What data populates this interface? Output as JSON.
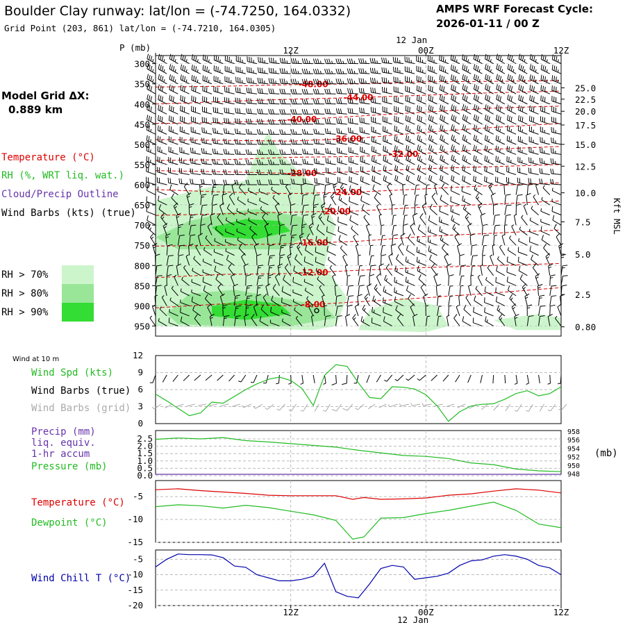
{
  "header": {
    "title": "Boulder Clay runway:  lat/lon = (-74.7250, 164.0332)",
    "grid_point": "Grid Point (203, 861) lat/lon = (-74.7210, 164.0305)",
    "cycle_label": "AMPS WRF Forecast Cycle:",
    "cycle_value": "2026-01-11 / 00  Z"
  },
  "sidebar": {
    "model_grid_label": "Model Grid ΔX:",
    "model_grid_value": "0.889 km",
    "temperature_label": "Temperature (°C)",
    "rh_label": "RH (%, WRT liq. wat.)",
    "cloud_label": "Cloud/Precip Outline",
    "wind_label": "Wind Barbs (kts) (true)",
    "rh_levels": [
      {
        "label": "RH > 70%",
        "color": "#ccf5cc"
      },
      {
        "label": "RH > 80%",
        "color": "#99e699"
      },
      {
        "label": "RH > 90%",
        "color": "#33dd33"
      }
    ]
  },
  "colors": {
    "temperature": "#dd0000",
    "rh": "#22bb22",
    "cloud": "#6633aa",
    "wind_chill": "#0000aa",
    "grid_barb": "#aaaaaa"
  },
  "time_axis": {
    "top_date": "12 Jan",
    "bottom_date": "12 Jan",
    "ticks": [
      "12Z",
      "00Z",
      "12Z"
    ]
  },
  "chart_data": [
    {
      "type": "heatmap",
      "name": "upper-air time-height cross section",
      "ylabel": "P (mb)",
      "right_label": "Kft MSL",
      "p_ticks": [
        300,
        350,
        400,
        450,
        500,
        550,
        600,
        650,
        700,
        750,
        800,
        850,
        900,
        950
      ],
      "kft_ticks": [
        "25.0",
        "22.5",
        "20.0",
        "17.5",
        "15.0",
        "12.5",
        "10.0",
        "7.5",
        "5.0",
        "2.5",
        "0.80"
      ],
      "kft_pressures": [
        360,
        388,
        418,
        452,
        500,
        554,
        620,
        692,
        772,
        872,
        952
      ],
      "ylim": [
        975,
        280
      ],
      "xlim_hours": [
        0,
        36
      ],
      "temperature_contours": [
        {
          "label": "-48.00",
          "points": [
            [
              0,
              358
            ],
            [
              6,
              356
            ],
            [
              12,
              352
            ],
            [
              18,
              350
            ],
            [
              24,
              345
            ],
            [
              30,
              344
            ],
            [
              36,
              342
            ]
          ]
        },
        {
          "label": "-44.00",
          "points": [
            [
              0,
              400
            ],
            [
              6,
              394
            ],
            [
              12,
              388
            ],
            [
              18,
              384
            ],
            [
              24,
              378
            ],
            [
              30,
              372
            ],
            [
              36,
              368
            ]
          ]
        },
        {
          "label": "-40.00",
          "points": [
            [
              0,
              448
            ],
            [
              6,
              446
            ],
            [
              12,
              440
            ],
            [
              18,
              430
            ],
            [
              24,
              420
            ],
            [
              30,
              410
            ],
            [
              36,
              405
            ]
          ]
        },
        {
          "label": "-36.00",
          "points": [
            [
              0,
              488
            ],
            [
              6,
              490
            ],
            [
              12,
              492
            ],
            [
              18,
              485
            ],
            [
              24,
              470
            ],
            [
              30,
              458
            ],
            [
              36,
              448
            ]
          ]
        },
        {
          "label": "-32.00",
          "points": [
            [
              0,
              540
            ],
            [
              6,
              538
            ],
            [
              12,
              532
            ],
            [
              18,
              530
            ],
            [
              24,
              522
            ],
            [
              30,
              512
            ],
            [
              36,
              505
            ]
          ]
        },
        {
          "label": "-28.00",
          "points": [
            [
              0,
              565
            ],
            [
              6,
              568
            ],
            [
              12,
              572
            ],
            [
              18,
              568
            ],
            [
              24,
              560
            ],
            [
              30,
              555
            ],
            [
              36,
              550
            ]
          ]
        },
        {
          "label": "-24.00",
          "points": [
            [
              0,
              612
            ],
            [
              6,
              618
            ],
            [
              12,
              622
            ],
            [
              18,
              618
            ],
            [
              24,
              610
            ],
            [
              30,
              602
            ],
            [
              36,
              595
            ]
          ]
        },
        {
          "label": "-20.00",
          "points": [
            [
              0,
              676
            ],
            [
              6,
              672
            ],
            [
              12,
              668
            ],
            [
              18,
              665
            ],
            [
              24,
              655
            ],
            [
              30,
              648
            ],
            [
              36,
              640
            ]
          ]
        },
        {
          "label": "-16.00",
          "points": [
            [
              0,
              752
            ],
            [
              6,
              750
            ],
            [
              12,
              746
            ],
            [
              18,
              740
            ],
            [
              24,
              728
            ],
            [
              30,
              720
            ],
            [
              36,
              712
            ]
          ]
        },
        {
          "label": "-12.00",
          "points": [
            [
              0,
              830
            ],
            [
              6,
              822
            ],
            [
              12,
              820
            ],
            [
              18,
              812
            ],
            [
              24,
              805
            ],
            [
              30,
              800
            ],
            [
              36,
              795
            ]
          ]
        },
        {
          "label": "-8.00",
          "points": [
            [
              0,
              905
            ],
            [
              6,
              895
            ],
            [
              12,
              900
            ],
            [
              18,
              890
            ],
            [
              24,
              880
            ],
            [
              30,
              868
            ],
            [
              36,
              855
            ]
          ]
        }
      ],
      "rh_regions": [
        {
          "level": 70,
          "points": [
            [
              0,
              950
            ],
            [
              0,
              640
            ],
            [
              4,
              610
            ],
            [
              8,
              590
            ],
            [
              9,
              520
            ],
            [
              10,
              470
            ],
            [
              11,
              520
            ],
            [
              14,
              600
            ],
            [
              16,
              700
            ],
            [
              15,
              800
            ],
            [
              17,
              880
            ],
            [
              16,
              950
            ],
            [
              14,
              960
            ]
          ]
        },
        {
          "level": 70,
          "points": [
            [
              18,
              960
            ],
            [
              19,
              910
            ],
            [
              22,
              880
            ],
            [
              25,
              900
            ],
            [
              26,
              950
            ],
            [
              24,
              965
            ]
          ]
        },
        {
          "level": 70,
          "points": [
            [
              30,
              935
            ],
            [
              34,
              920
            ],
            [
              36,
              930
            ],
            [
              36,
              960
            ],
            [
              32,
              960
            ]
          ]
        },
        {
          "level": 80,
          "points": [
            [
              0,
              730
            ],
            [
              3,
              690
            ],
            [
              6,
              670
            ],
            [
              9,
              660
            ],
            [
              13,
              680
            ],
            [
              14,
              720
            ],
            [
              11,
              760
            ],
            [
              6,
              760
            ],
            [
              2,
              760
            ]
          ]
        },
        {
          "level": 80,
          "points": [
            [
              1,
              920
            ],
            [
              3,
              870
            ],
            [
              7,
              860
            ],
            [
              11,
              880
            ],
            [
              15,
              900
            ],
            [
              16,
              930
            ],
            [
              12,
              950
            ],
            [
              6,
              950
            ],
            [
              2,
              945
            ]
          ]
        },
        {
          "level": 90,
          "points": [
            [
              5,
              705
            ],
            [
              8,
              685
            ],
            [
              11,
              690
            ],
            [
              12,
              715
            ],
            [
              9,
              735
            ],
            [
              6,
              730
            ]
          ]
        },
        {
          "level": 90,
          "points": [
            [
              5,
              900
            ],
            [
              8,
              885
            ],
            [
              11,
              895
            ],
            [
              12,
              920
            ],
            [
              8,
              935
            ],
            [
              5,
              925
            ]
          ]
        }
      ],
      "marker": {
        "hour": 14.3,
        "p": 912
      }
    },
    {
      "type": "line",
      "name": "10 m wind",
      "panel_label": "Wind at 10 m",
      "legend": [
        "Wind Spd (kts)",
        "Wind Barbs (true)",
        "Wind Barbs (grid)"
      ],
      "yticks": [
        0,
        3,
        6,
        9,
        12
      ],
      "ylim": [
        0,
        12
      ],
      "x_hours": [
        0,
        1,
        2,
        3,
        4,
        5,
        6,
        7,
        8,
        9,
        10,
        11,
        12,
        13,
        14,
        15,
        16,
        17,
        18,
        19,
        20,
        21,
        22,
        23,
        24,
        25,
        26,
        27,
        28,
        29,
        30,
        31,
        32,
        33,
        34,
        35,
        36
      ],
      "wind_speed": [
        5.2,
        4.0,
        2.7,
        1.4,
        1.9,
        3.8,
        3.6,
        4.8,
        6.0,
        7.0,
        7.8,
        8.2,
        7.6,
        6.2,
        3.2,
        8.5,
        10.4,
        10.1,
        7.2,
        4.6,
        4.4,
        6.5,
        6.4,
        6.1,
        5.1,
        3.1,
        0.4,
        2.1,
        3.1,
        3.4,
        3.5,
        4.3,
        5.3,
        5.8,
        4.9,
        5.3,
        6.5
      ]
    },
    {
      "type": "line",
      "name": "precip and pressure",
      "legend": [
        "Precip (mm)",
        "liq. equiv.",
        "1-hr accum",
        "Pressure (mb)"
      ],
      "left_ticks": [
        "2.5",
        "2.0",
        "1.5",
        "1.0",
        "0.5",
        "0.0"
      ],
      "right_ticks": [
        "958",
        "956",
        "954",
        "952",
        "950",
        "948"
      ],
      "right_unit": "(mb)",
      "pressure_ylim": [
        948,
        958
      ],
      "x_hours": [
        0,
        2,
        4,
        6,
        8,
        10,
        12,
        14,
        16,
        18,
        20,
        22,
        24,
        26,
        28,
        30,
        32,
        34,
        36
      ],
      "pressure": [
        956.0,
        956.3,
        956.1,
        956.4,
        955.7,
        955.4,
        955.0,
        954.6,
        954.2,
        953.5,
        952.9,
        952.3,
        952.1,
        951.6,
        950.6,
        950.2,
        949.2,
        948.8,
        948.6
      ],
      "precip": [
        0,
        0,
        0,
        0,
        0,
        0,
        0,
        0,
        0,
        0,
        0,
        0,
        0,
        0,
        0,
        0,
        0,
        0,
        0
      ]
    },
    {
      "type": "line",
      "name": "temperature and dewpoint",
      "legend": [
        "Temperature (°C)",
        "Dewpoint (°C)"
      ],
      "yticks": [
        -15,
        -10,
        -5
      ],
      "ylim": [
        -15,
        -1.5
      ],
      "x_hours": [
        0,
        2,
        4,
        6,
        8,
        10,
        12,
        14,
        16,
        17.5,
        18.5,
        20,
        22,
        24,
        26,
        28,
        30,
        32,
        34,
        36
      ],
      "temperature": [
        -3.5,
        -3.3,
        -3.7,
        -4.0,
        -4.3,
        -4.7,
        -4.8,
        -4.8,
        -4.8,
        -5.6,
        -5.2,
        -5.6,
        -5.5,
        -5.3,
        -4.7,
        -4.4,
        -3.8,
        -3.3,
        -3.6,
        -4.2
      ],
      "dewpoint": [
        -7.2,
        -6.8,
        -7.0,
        -7.5,
        -6.9,
        -7.4,
        -8.2,
        -9.0,
        -10.2,
        -14.3,
        -13.8,
        -9.7,
        -9.6,
        -8.7,
        -8.0,
        -7.1,
        -6.2,
        -8.0,
        -11.0,
        -11.8
      ]
    },
    {
      "type": "line",
      "name": "wind chill",
      "legend": [
        "Wind Chill T (°C)"
      ],
      "yticks": [
        -20,
        -15,
        -10,
        -5
      ],
      "ylim": [
        -20,
        -2
      ],
      "x_hours": [
        0,
        1,
        2,
        3,
        4,
        5,
        6,
        7,
        8,
        9,
        10,
        11,
        12,
        13,
        14,
        15,
        16,
        17,
        18,
        19,
        20,
        21,
        22,
        23,
        24,
        25,
        26,
        27,
        28,
        29,
        30,
        31,
        32,
        33,
        34,
        35,
        36
      ],
      "wind_chill": [
        -7.5,
        -5.0,
        -3.3,
        -3.5,
        -3.5,
        -3.6,
        -4.5,
        -7.2,
        -7.6,
        -10.0,
        -11.0,
        -12.0,
        -12.0,
        -11.5,
        -10.5,
        -6.3,
        -15.5,
        -17.0,
        -17.5,
        -13.0,
        -8.0,
        -7.0,
        -7.5,
        -11.5,
        -11.0,
        -10.5,
        -9.5,
        -7.0,
        -5.5,
        -5.2,
        -4.0,
        -3.5,
        -4.0,
        -5.0,
        -7.0,
        -7.8,
        -10.0
      ]
    }
  ]
}
